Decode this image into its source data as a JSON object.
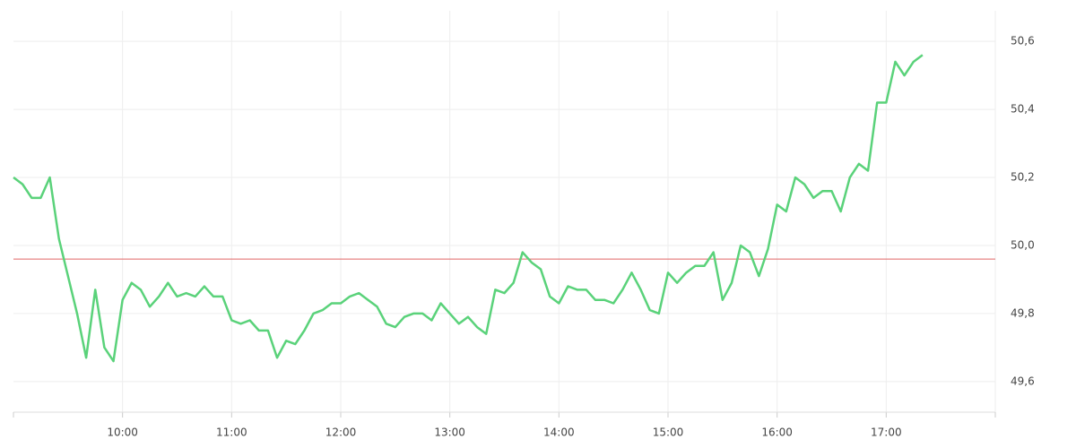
{
  "chart_data": {
    "type": "line",
    "x": [
      540,
      545,
      550,
      555,
      560,
      565,
      570,
      575,
      580,
      585,
      590,
      595,
      600,
      605,
      610,
      615,
      620,
      625,
      630,
      635,
      640,
      645,
      650,
      655,
      660,
      665,
      670,
      675,
      680,
      685,
      690,
      695,
      700,
      705,
      710,
      715,
      720,
      725,
      730,
      735,
      740,
      745,
      750,
      755,
      760,
      765,
      770,
      775,
      780,
      785,
      790,
      795,
      800,
      805,
      810,
      815,
      820,
      825,
      830,
      835,
      840,
      845,
      850,
      855,
      860,
      865,
      870,
      875,
      880,
      885,
      890,
      895,
      900,
      905,
      910,
      915,
      920,
      925,
      930,
      935,
      940,
      945,
      950,
      955,
      960,
      965,
      970,
      975,
      980,
      985,
      990,
      995,
      1000,
      1005,
      1010,
      1015,
      1020,
      1025,
      1030,
      1035,
      1040
    ],
    "series": [
      {
        "color": "#5ad27a",
        "values": [
          50.2,
          50.18,
          50.14,
          50.14,
          50.2,
          50.02,
          49.91,
          49.8,
          49.67,
          49.87,
          49.7,
          49.66,
          49.84,
          49.89,
          49.87,
          49.82,
          49.85,
          49.89,
          49.85,
          49.86,
          49.85,
          49.88,
          49.85,
          49.85,
          49.78,
          49.77,
          49.78,
          49.75,
          49.75,
          49.67,
          49.72,
          49.71,
          49.75,
          49.8,
          49.81,
          49.83,
          49.83,
          49.85,
          49.86,
          49.84,
          49.82,
          49.77,
          49.76,
          49.79,
          49.8,
          49.8,
          49.78,
          49.83,
          49.8,
          49.77,
          49.79,
          49.76,
          49.74,
          49.87,
          49.86,
          49.89,
          49.98,
          49.95,
          49.93,
          49.85,
          49.83,
          49.88,
          49.87,
          49.87,
          49.84,
          49.84,
          49.83,
          49.87,
          49.92,
          49.87,
          49.81,
          49.8,
          49.92,
          49.89,
          49.92,
          49.94,
          49.94,
          49.98,
          49.84,
          49.89,
          50.0,
          49.98,
          49.91,
          49.99,
          50.12,
          50.1,
          50.2,
          50.18,
          50.14,
          50.16,
          50.16,
          50.1,
          50.2,
          50.24,
          50.22,
          50.42,
          50.42,
          50.54,
          50.5,
          50.54,
          50.56
        ]
      }
    ],
    "reference_line": {
      "value": 49.96,
      "color": "#e06666"
    },
    "xlim": [
      540,
      1080
    ],
    "xticks": [
      {
        "value": 600,
        "label": "10:00"
      },
      {
        "value": 660,
        "label": "11:00"
      },
      {
        "value": 720,
        "label": "12:00"
      },
      {
        "value": 780,
        "label": "13:00"
      },
      {
        "value": 840,
        "label": "14:00"
      },
      {
        "value": 900,
        "label": "15:00"
      },
      {
        "value": 960,
        "label": "16:00"
      },
      {
        "value": 1020,
        "label": "17:00"
      }
    ],
    "ylim": [
      49.51,
      50.69
    ],
    "yticks": [
      {
        "value": 49.6,
        "label": "49,6"
      },
      {
        "value": 49.8,
        "label": "49,8"
      },
      {
        "value": 50.0,
        "label": "50,0"
      },
      {
        "value": 50.2,
        "label": "50,2"
      },
      {
        "value": 50.4,
        "label": "50,4"
      },
      {
        "value": 50.6,
        "label": "50,6"
      }
    ],
    "grid": true
  }
}
